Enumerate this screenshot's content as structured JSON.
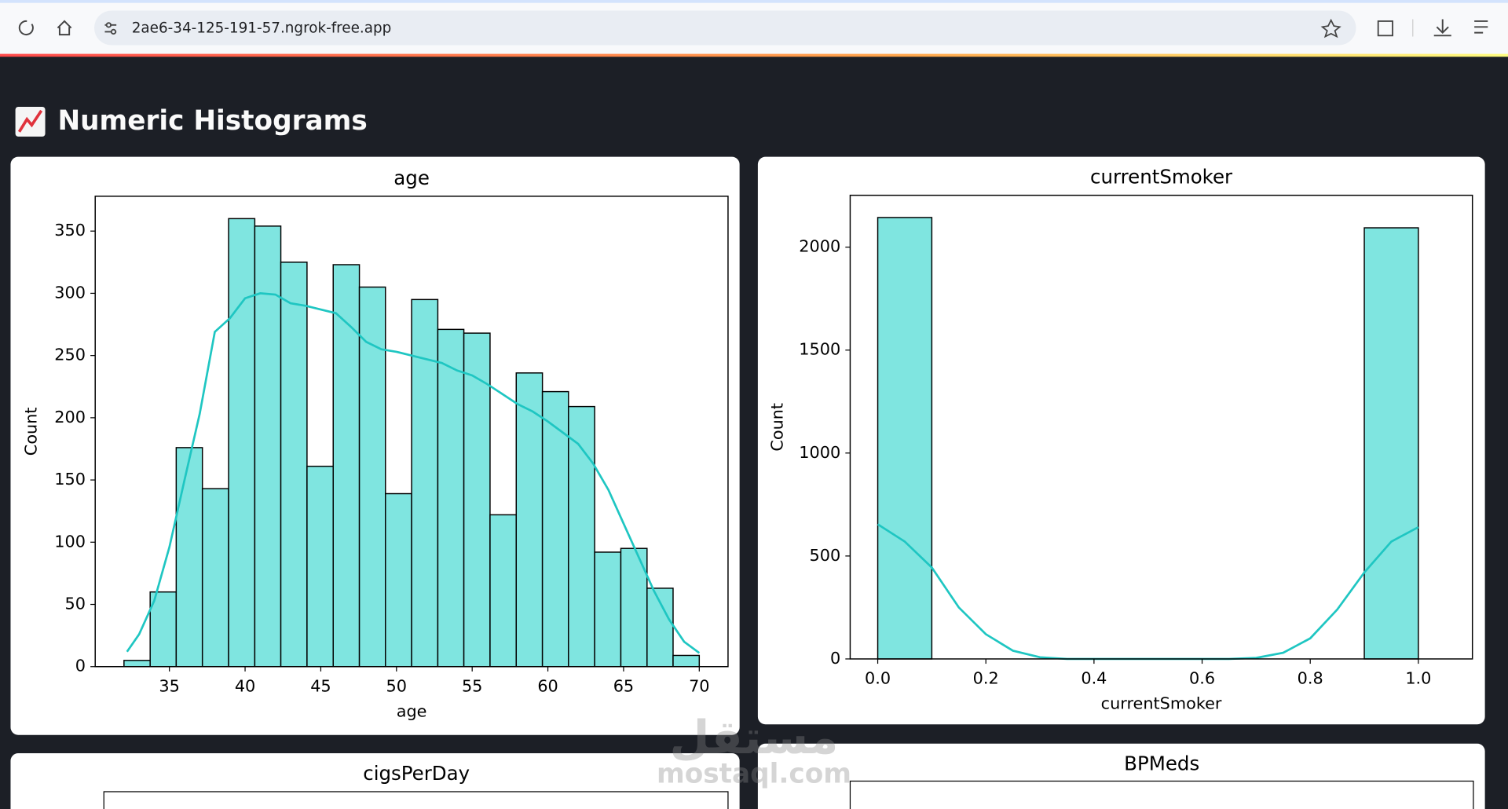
{
  "browser": {
    "url": "2ae6-34-125-191-57.ngrok-free.app"
  },
  "header": {
    "title": "Numeric Histograms"
  },
  "charts": [
    {
      "type": "histogram",
      "title": "age",
      "x_label": "age",
      "y_label": "Count",
      "color": "#7fe5e0",
      "edge_color": "#000000",
      "kde_color": "#1fc6c2",
      "bins": [
        32,
        33.73,
        35.45,
        37.18,
        38.91,
        40.64,
        42.36,
        44.09,
        45.82,
        47.55,
        49.27,
        51,
        52.73,
        54.45,
        56.18,
        57.91,
        59.64,
        61.36,
        63.09,
        64.82,
        66.55,
        68.27,
        70
      ],
      "counts": [
        5,
        60,
        176,
        143,
        360,
        354,
        325,
        161,
        323,
        305,
        139,
        295,
        271,
        268,
        122,
        236,
        221,
        209,
        92,
        95,
        63,
        9
      ],
      "kde": {
        "x": [
          32.2,
          33,
          34,
          35,
          36,
          37,
          38,
          39,
          40,
          41,
          42,
          43,
          44,
          45,
          46,
          47,
          48,
          49,
          50,
          51,
          52,
          53,
          54,
          55,
          56,
          57,
          58,
          59,
          60,
          61,
          62,
          63,
          64,
          65,
          66,
          67,
          68,
          69,
          70
        ],
        "y": [
          12,
          26,
          53,
          96,
          150,
          203,
          269,
          280,
          296,
          300,
          299,
          292,
          290,
          287,
          284,
          273,
          261,
          255,
          253,
          250,
          247,
          244,
          238,
          234,
          227,
          219,
          211,
          205,
          197,
          188,
          179,
          163,
          142,
          115,
          88,
          61,
          38,
          20,
          11
        ]
      },
      "xlim": [
        30.1,
        71.9
      ],
      "ylim": [
        0,
        378
      ],
      "xticks": [
        35,
        40,
        45,
        50,
        55,
        60,
        65,
        70
      ],
      "yticks": [
        0,
        50,
        100,
        150,
        200,
        250,
        300,
        350
      ]
    },
    {
      "type": "histogram",
      "title": "currentSmoker",
      "x_label": "currentSmoker",
      "y_label": "Count",
      "color": "#7fe5e0",
      "edge_color": "#000000",
      "kde_color": "#1fc6c2",
      "bins": [
        0,
        0.1,
        0.2,
        0.3,
        0.4,
        0.5,
        0.6,
        0.7,
        0.8,
        0.9,
        1
      ],
      "counts": [
        2144,
        0,
        0,
        0,
        0,
        0,
        0,
        0,
        0,
        2094
      ],
      "kde": {
        "x": [
          0,
          0.05,
          0.1,
          0.15,
          0.2,
          0.25,
          0.3,
          0.35,
          0.4,
          0.5,
          0.6,
          0.65,
          0.7,
          0.75,
          0.8,
          0.85,
          0.9,
          0.95,
          1
        ],
        "y": [
          654,
          570,
          444,
          250,
          120,
          40,
          8,
          0,
          0,
          0,
          0,
          0,
          5,
          30,
          100,
          240,
          420,
          570,
          640
        ]
      },
      "xlim": [
        -0.051,
        1.1
      ],
      "ylim": [
        0,
        2252
      ],
      "xticks": [
        {
          "value": 0,
          "label": "0.0"
        },
        {
          "value": 0.2,
          "label": "0.2"
        },
        {
          "value": 0.4,
          "label": "0.4"
        },
        {
          "value": 0.6,
          "label": "0.6"
        },
        {
          "value": 0.8,
          "label": "0.8"
        },
        {
          "value": 1,
          "label": "1.0"
        }
      ],
      "yticks": [
        0,
        500,
        1000,
        1500,
        2000
      ]
    }
  ],
  "partial_charts": [
    {
      "title": "cigsPerDay"
    },
    {
      "title": "BPMeds"
    }
  ],
  "watermark": {
    "arabic": "مستقل",
    "latin": "mostaql.com"
  }
}
